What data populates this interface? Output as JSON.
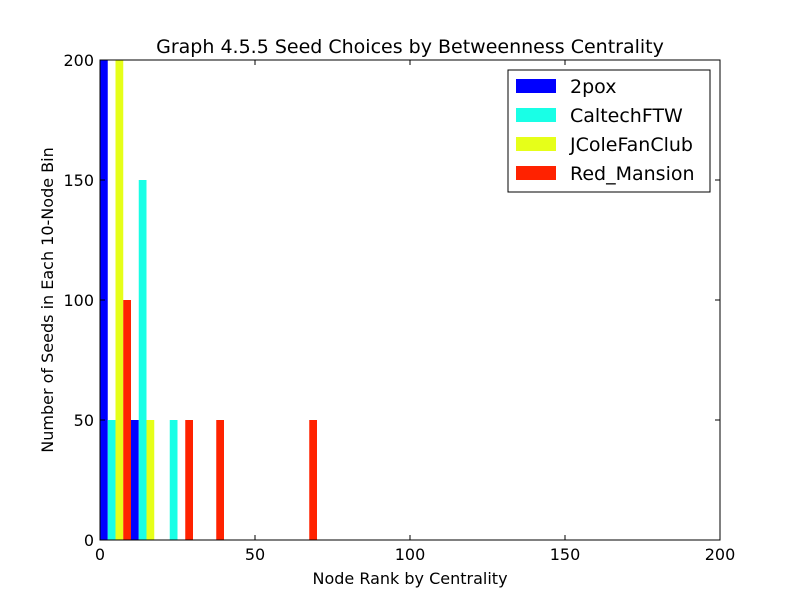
{
  "chart_data": {
    "type": "bar",
    "title": "Graph 4.5.5 Seed Choices by Betweenness Centrality",
    "xlabel": "Node Rank by Centrality",
    "ylabel": "Number of Seeds in Each 10-Node Bin",
    "xlim": [
      0,
      200
    ],
    "ylim": [
      0,
      200
    ],
    "xticks": [
      0,
      50,
      100,
      150,
      200
    ],
    "yticks": [
      0,
      50,
      100,
      150,
      200
    ],
    "grid": false,
    "legend_position": "top-right",
    "bin_width": 10,
    "bin_starts": [
      0,
      10,
      20,
      30,
      40,
      50,
      60
    ],
    "series": [
      {
        "name": "2pox",
        "color": "#0000ff",
        "values": [
          200,
          50,
          0,
          0,
          0,
          0,
          0
        ]
      },
      {
        "name": "CaltechFTW",
        "color": "#19ffe6",
        "values": [
          50,
          150,
          50,
          0,
          0,
          0,
          0
        ]
      },
      {
        "name": "JColeFanClub",
        "color": "#e6ff19",
        "values": [
          200,
          50,
          0,
          0,
          0,
          0,
          0
        ]
      },
      {
        "name": "Red_Mansion",
        "color": "#ff2200",
        "values": [
          100,
          0,
          50,
          50,
          0,
          0,
          50
        ]
      }
    ]
  }
}
